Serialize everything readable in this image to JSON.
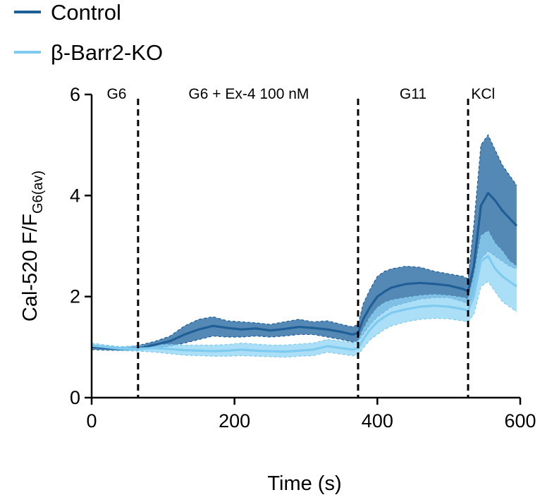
{
  "chart_data": {
    "type": "line",
    "xlabel": "Time (s)",
    "ylabel_main": "Cal-520 F/F",
    "ylabel_sub": "G6(av)",
    "xlim": [
      0,
      600
    ],
    "ylim": [
      0,
      6
    ],
    "xticks": [
      0,
      200,
      400,
      600
    ],
    "yticks": [
      0,
      2,
      4,
      6
    ],
    "grid": false,
    "legend_position": "top-left",
    "phase_boundaries": [
      65,
      373,
      527
    ],
    "phase_labels": [
      {
        "text": "G6",
        "x": 35
      },
      {
        "text": "G6 + Ex-4 100 nM",
        "x": 220
      },
      {
        "text": "G11",
        "x": 450
      },
      {
        "text": "KCl",
        "x": 548
      }
    ],
    "series": [
      {
        "name": "Control",
        "color": "#1f5f96",
        "band_color": "#2b6ca3",
        "x": [
          0,
          20,
          40,
          65,
          90,
          110,
          130,
          150,
          170,
          190,
          210,
          230,
          250,
          270,
          290,
          310,
          330,
          350,
          365,
          373,
          380,
          390,
          400,
          410,
          420,
          440,
          460,
          480,
          500,
          520,
          527,
          535,
          545,
          555,
          565,
          575,
          585,
          595
        ],
        "y": [
          1.0,
          0.98,
          0.96,
          0.98,
          1.05,
          1.12,
          1.25,
          1.35,
          1.42,
          1.38,
          1.35,
          1.37,
          1.33,
          1.36,
          1.4,
          1.38,
          1.35,
          1.3,
          1.25,
          1.28,
          1.55,
          1.8,
          2.0,
          2.1,
          2.18,
          2.25,
          2.27,
          2.25,
          2.22,
          2.15,
          2.1,
          2.6,
          3.8,
          4.05,
          3.9,
          3.7,
          3.55,
          3.4
        ],
        "upper": [
          1.05,
          1.02,
          1.0,
          1.03,
          1.12,
          1.22,
          1.42,
          1.55,
          1.6,
          1.52,
          1.5,
          1.48,
          1.45,
          1.5,
          1.55,
          1.5,
          1.52,
          1.45,
          1.4,
          1.45,
          1.85,
          2.15,
          2.4,
          2.5,
          2.55,
          2.6,
          2.58,
          2.5,
          2.45,
          2.4,
          2.35,
          3.4,
          5.0,
          5.2,
          4.9,
          4.6,
          4.4,
          4.2
        ],
        "lower": [
          0.95,
          0.94,
          0.93,
          0.94,
          0.98,
          1.02,
          1.08,
          1.15,
          1.22,
          1.2,
          1.2,
          1.22,
          1.2,
          1.22,
          1.25,
          1.25,
          1.2,
          1.15,
          1.1,
          1.12,
          1.25,
          1.45,
          1.6,
          1.7,
          1.8,
          1.88,
          1.95,
          1.98,
          1.98,
          1.9,
          1.85,
          2.0,
          2.75,
          2.9,
          2.8,
          2.7,
          2.6,
          2.55
        ]
      },
      {
        "name": "β-Barr2-KO",
        "color": "#7fcbef",
        "band_color": "#8fd3f4",
        "x": [
          0,
          20,
          40,
          65,
          90,
          110,
          130,
          150,
          170,
          190,
          210,
          230,
          250,
          270,
          290,
          310,
          330,
          350,
          365,
          373,
          380,
          390,
          400,
          410,
          420,
          440,
          460,
          480,
          500,
          520,
          527,
          535,
          545,
          555,
          565,
          575,
          585,
          595
        ],
        "y": [
          1.03,
          1.0,
          0.97,
          0.97,
          0.98,
          0.96,
          0.94,
          0.93,
          0.92,
          0.93,
          0.95,
          0.93,
          0.92,
          0.91,
          0.93,
          0.95,
          1.02,
          0.98,
          0.95,
          0.98,
          1.15,
          1.35,
          1.5,
          1.6,
          1.68,
          1.75,
          1.8,
          1.82,
          1.8,
          1.75,
          1.72,
          2.0,
          2.7,
          2.8,
          2.55,
          2.4,
          2.3,
          2.2
        ],
        "upper": [
          1.08,
          1.04,
          1.01,
          1.02,
          1.05,
          1.05,
          1.04,
          1.04,
          1.04,
          1.05,
          1.08,
          1.06,
          1.04,
          1.04,
          1.06,
          1.08,
          1.15,
          1.12,
          1.08,
          1.12,
          1.35,
          1.6,
          1.78,
          1.88,
          1.93,
          1.98,
          2.02,
          2.04,
          2.02,
          1.98,
          1.95,
          2.4,
          3.2,
          3.3,
          3.05,
          2.9,
          2.7,
          2.6
        ],
        "lower": [
          0.98,
          0.96,
          0.93,
          0.92,
          0.9,
          0.87,
          0.84,
          0.83,
          0.82,
          0.82,
          0.83,
          0.82,
          0.81,
          0.8,
          0.82,
          0.83,
          0.9,
          0.86,
          0.83,
          0.85,
          0.98,
          1.15,
          1.25,
          1.35,
          1.42,
          1.5,
          1.55,
          1.57,
          1.56,
          1.52,
          1.5,
          1.65,
          2.2,
          2.3,
          2.1,
          1.9,
          1.8,
          1.7
        ]
      }
    ]
  }
}
